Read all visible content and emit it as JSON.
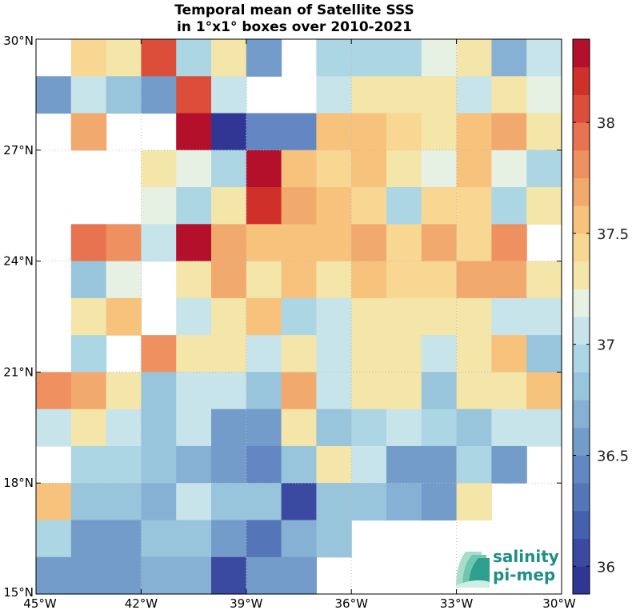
{
  "chart_data": {
    "type": "heatmap",
    "title": [
      "Temporal mean of Satellite SSS",
      "in 1°x1° boxes over 2010-2021"
    ],
    "x_range": [
      -45,
      -30
    ],
    "y_range": [
      15,
      30
    ],
    "x_ticks": [
      {
        "value": -45,
        "label": "45°W"
      },
      {
        "value": -42,
        "label": "42°W"
      },
      {
        "value": -39,
        "label": "39°W"
      },
      {
        "value": -36,
        "label": "36°W"
      },
      {
        "value": -33,
        "label": "33°W"
      },
      {
        "value": -30,
        "label": "30°W"
      }
    ],
    "y_ticks": [
      {
        "value": 30,
        "label": "30°N"
      },
      {
        "value": 27,
        "label": "27°N"
      },
      {
        "value": 24,
        "label": "24°N"
      },
      {
        "value": 21,
        "label": "21°N"
      },
      {
        "value": 18,
        "label": "18°N"
      },
      {
        "value": 15,
        "label": "15°N"
      }
    ],
    "grid": true,
    "colorbar": {
      "range": [
        35.875,
        38.375
      ],
      "levels": 20,
      "ticks": [
        {
          "value": 36,
          "label": "36"
        },
        {
          "value": 36.5,
          "label": "36.5"
        },
        {
          "value": 37,
          "label": "37"
        },
        {
          "value": 37.5,
          "label": "37.5"
        },
        {
          "value": 38,
          "label": "38"
        }
      ],
      "colors": [
        "#313695",
        "#3a4aa0",
        "#4560ae",
        "#5475b8",
        "#6387c2",
        "#739cca",
        "#86b0d4",
        "#98c4dc",
        "#acd6e3",
        "#c6e4ea",
        "#e6f0e3",
        "#f4e5a8",
        "#f8d792",
        "#f6c27c",
        "#f2a96d",
        "#ee9060",
        "#e87351",
        "#dc4e3a",
        "#cf3029",
        "#b40f2b"
      ]
    },
    "x_cells": [
      -44.5,
      -43.5,
      -42.5,
      -41.5,
      -40.5,
      -39.5,
      -38.5,
      -37.5,
      -36.5,
      -35.5,
      -34.5,
      -33.5,
      -32.5,
      -31.5,
      -30.5
    ],
    "y_cells": [
      29.5,
      28.5,
      27.5,
      26.5,
      25.5,
      24.5,
      23.5,
      22.5,
      21.5,
      20.5,
      19.5,
      18.5,
      17.5,
      16.5,
      15.5
    ],
    "values": [
      [
        null,
        37.45,
        37.35,
        38.05,
        36.95,
        37.35,
        36.6,
        null,
        36.95,
        36.95,
        36.95,
        37.15,
        37.25,
        36.65,
        37.1
      ],
      [
        36.55,
        37.1,
        36.75,
        36.5,
        38.05,
        37.1,
        null,
        null,
        37.1,
        37.25,
        37.35,
        37.25,
        37.1,
        37.25,
        37.15
      ],
      [
        null,
        37.7,
        null,
        null,
        38.3,
        35.95,
        36.45,
        36.45,
        37.55,
        37.55,
        37.45,
        37.25,
        37.5,
        37.65,
        37.35
      ],
      [
        null,
        null,
        null,
        37.35,
        37.2,
        36.95,
        38.3,
        37.55,
        37.4,
        37.55,
        37.35,
        37.15,
        37.55,
        37.15,
        36.95
      ],
      [
        null,
        null,
        null,
        37.2,
        36.95,
        37.35,
        38.2,
        37.65,
        37.5,
        37.4,
        36.95,
        37.4,
        37.45,
        36.95,
        37.35
      ],
      [
        null,
        37.95,
        37.85,
        37.1,
        38.3,
        37.65,
        37.55,
        37.55,
        37.55,
        37.65,
        37.4,
        37.7,
        37.4,
        37.85,
        null
      ],
      [
        null,
        36.85,
        37.2,
        null,
        37.25,
        37.65,
        37.35,
        37.5,
        37.35,
        37.55,
        37.4,
        37.45,
        37.65,
        37.65,
        37.35
      ],
      [
        null,
        37.35,
        37.5,
        null,
        37.1,
        37.35,
        37.5,
        36.95,
        37.1,
        37.25,
        37.35,
        37.35,
        37.25,
        37.1,
        37.1
      ],
      [
        null,
        36.95,
        null,
        37.85,
        37.25,
        37.25,
        37.1,
        37.35,
        37.1,
        37.35,
        37.25,
        37.1,
        37.35,
        37.5,
        36.85
      ],
      [
        37.85,
        37.65,
        37.35,
        36.85,
        37.1,
        37.1,
        36.85,
        37.65,
        37.1,
        37.25,
        37.35,
        36.85,
        37.25,
        37.35,
        37.5
      ],
      [
        37.1,
        37.25,
        37.1,
        36.85,
        37.1,
        36.6,
        36.6,
        37.25,
        36.85,
        36.95,
        37.1,
        36.95,
        36.85,
        37.1,
        37.1
      ],
      [
        null,
        36.95,
        36.95,
        36.85,
        36.7,
        36.6,
        36.45,
        36.85,
        37.25,
        37.1,
        36.6,
        36.6,
        36.95,
        36.6,
        null
      ],
      [
        37.55,
        36.75,
        36.85,
        36.65,
        37.1,
        36.85,
        36.75,
        36.05,
        36.85,
        36.85,
        36.65,
        36.5,
        37.25,
        null,
        null
      ],
      [
        36.95,
        36.55,
        36.5,
        36.75,
        36.85,
        36.55,
        36.25,
        36.65,
        36.85,
        null,
        null,
        null,
        null,
        null,
        null
      ],
      [
        36.55,
        36.5,
        36.6,
        36.7,
        36.7,
        36.05,
        36.5,
        36.6,
        null,
        null,
        null,
        null,
        null,
        null,
        null
      ]
    ]
  },
  "logo": {
    "line1": "salinity",
    "line2": "pi-mep",
    "colors": [
      "#1f8f86",
      "#6fc7b0",
      "#a8dccb"
    ]
  }
}
